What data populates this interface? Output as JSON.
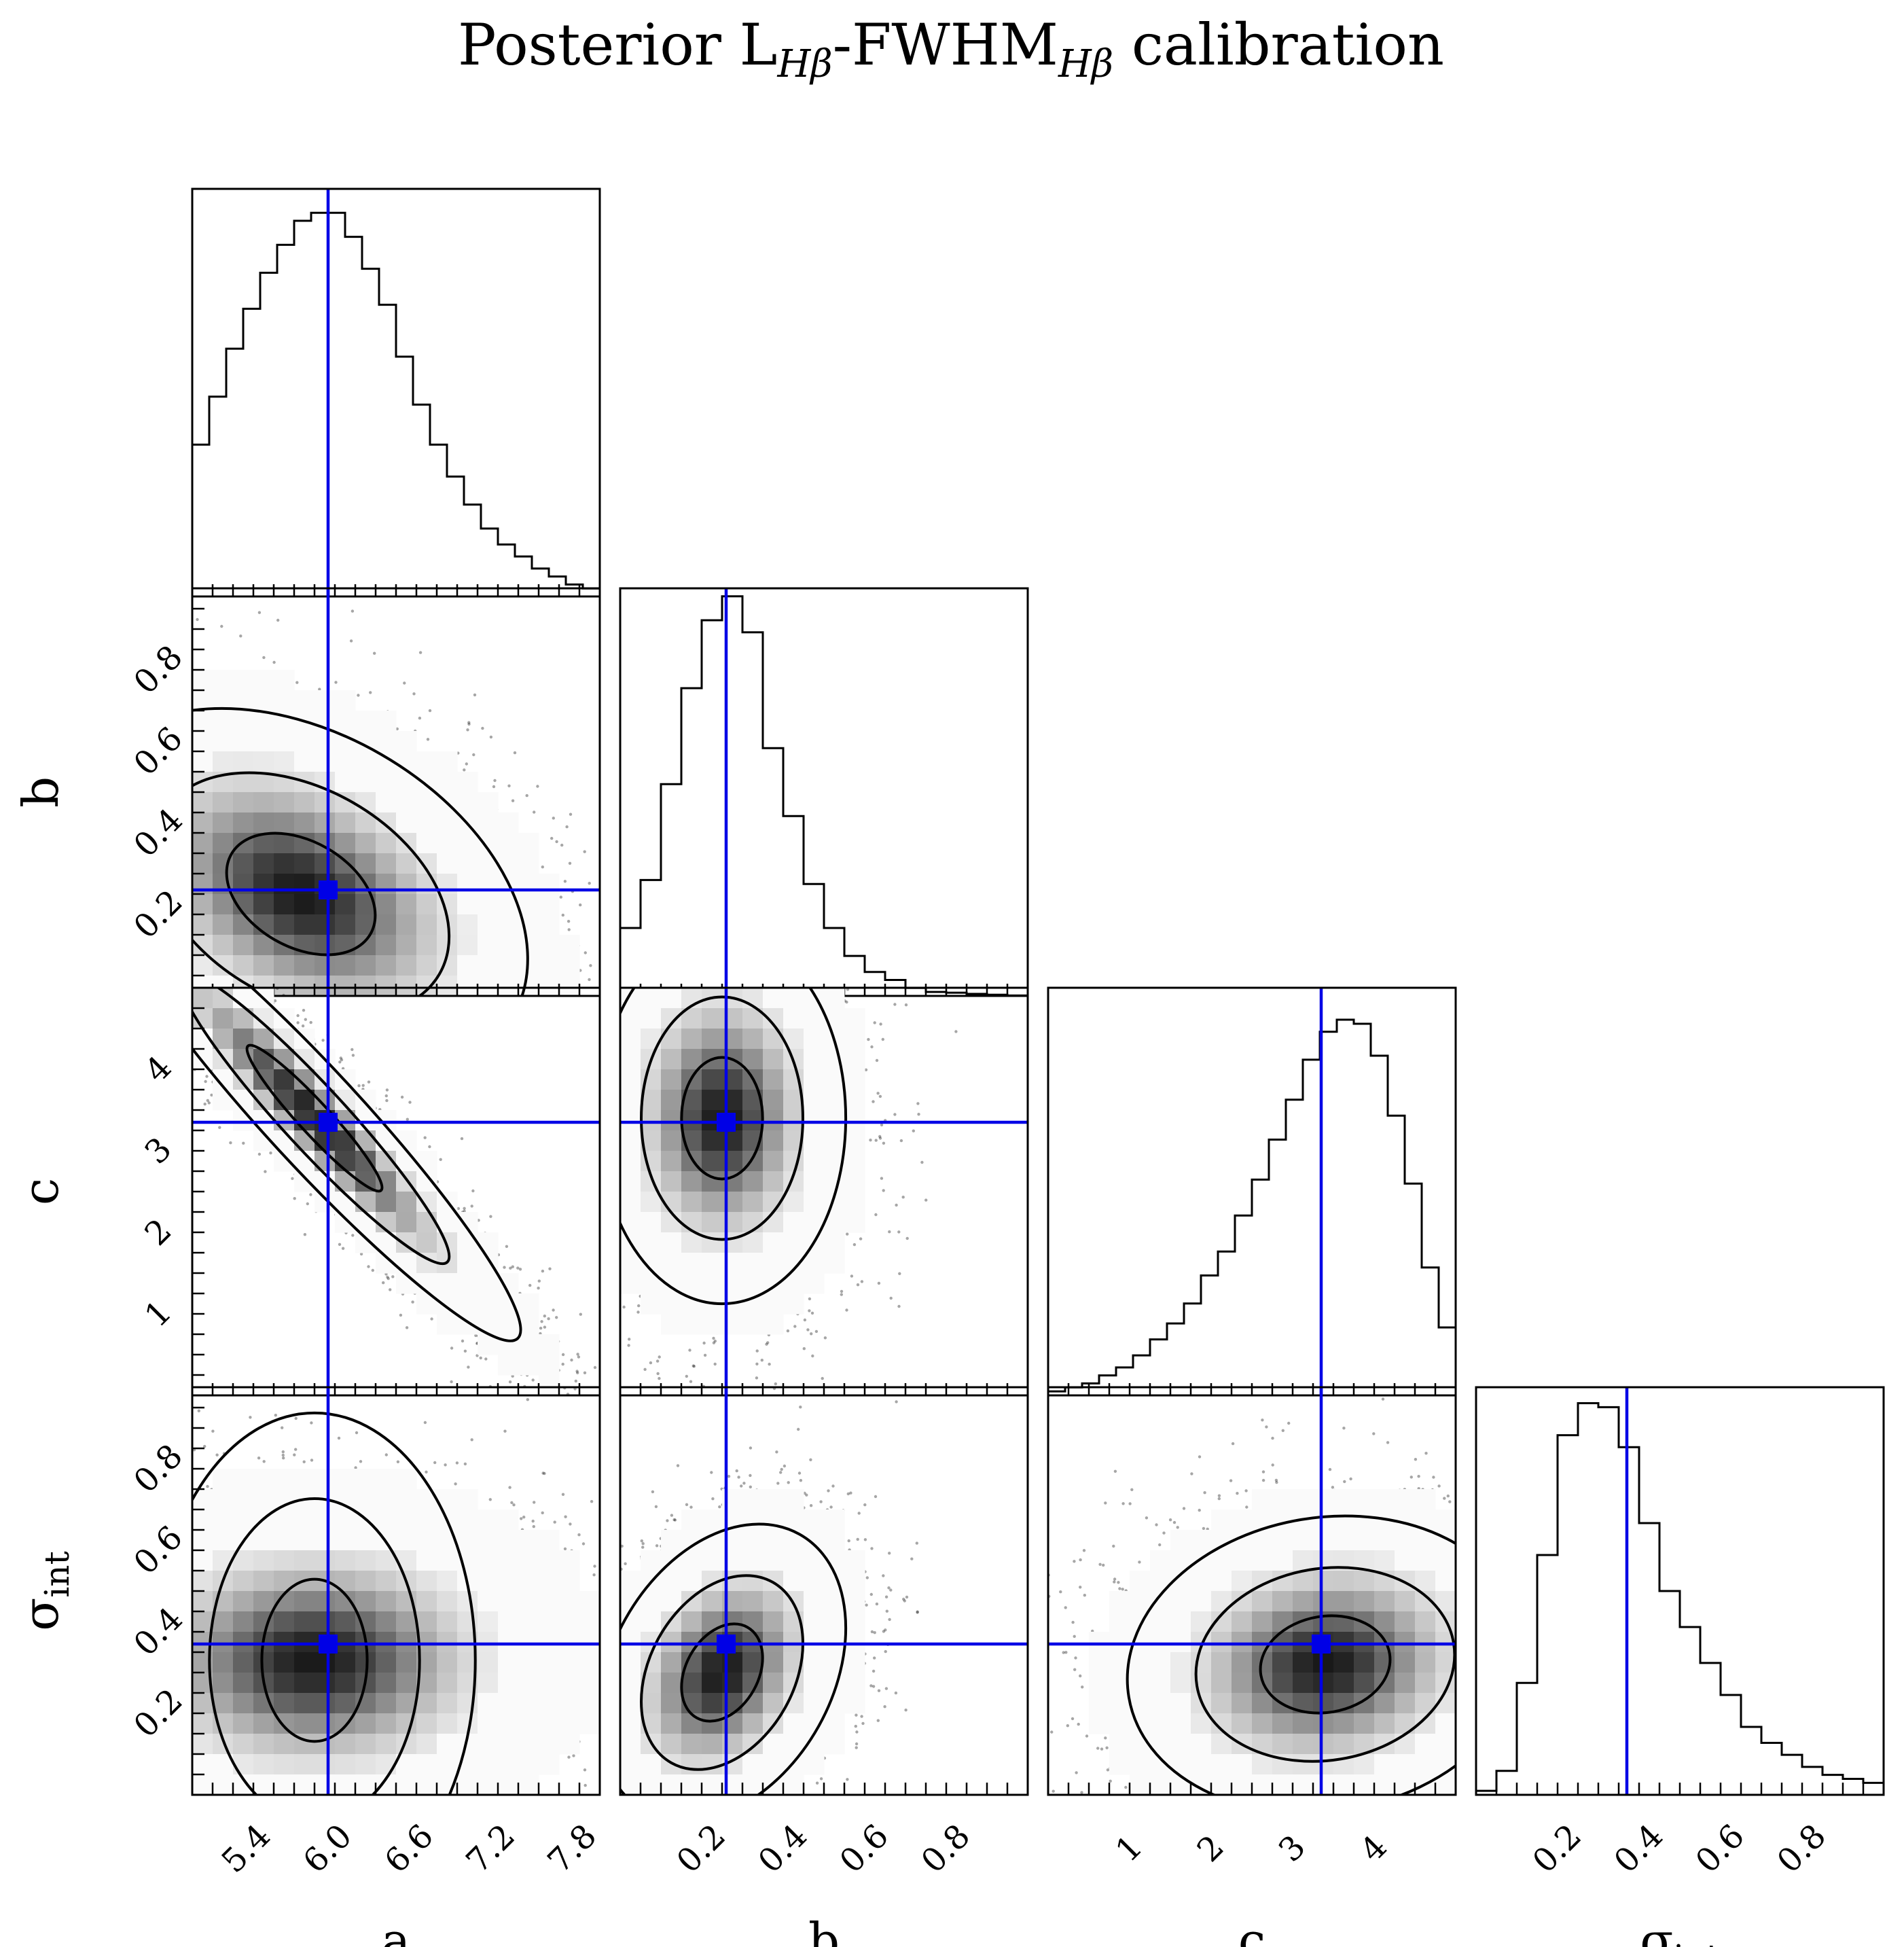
{
  "chart_data": {
    "type": "corner",
    "title": "Posterior L_Hβ-FWHM_Hβ calibration",
    "title_parts": {
      "prefix": "Posterior L",
      "sub1": "Hβ",
      "mid": "-FWHM",
      "sub2": "Hβ",
      "suffix": " calibration"
    },
    "parameters": [
      {
        "key": "a",
        "label": "a",
        "range": [
          5.0,
          8.0
        ],
        "ticks": [
          5.4,
          6.0,
          6.6,
          7.2,
          7.8
        ],
        "tick_labels": [
          "5.4",
          "6.0",
          "6.6",
          "7.2",
          "7.8"
        ],
        "truth": 6.0
      },
      {
        "key": "b",
        "label": "b",
        "range": [
          0.0,
          1.0
        ],
        "ticks": [
          0.2,
          0.4,
          0.6,
          0.8
        ],
        "tick_labels": [
          "0.2",
          "0.4",
          "0.6",
          "0.8"
        ],
        "truth": 0.26
      },
      {
        "key": "c",
        "label": "c",
        "range": [
          0.0,
          5.0
        ],
        "ticks": [
          1,
          2,
          3,
          4
        ],
        "tick_labels": [
          "1",
          "2",
          "3",
          "4"
        ],
        "truth": 3.35
      },
      {
        "key": "sigma_int",
        "label": "σ",
        "label_sub": "int",
        "range": [
          0.0,
          1.0
        ],
        "ticks": [
          0.2,
          0.4,
          0.6,
          0.8
        ],
        "tick_labels": [
          "0.2",
          "0.4",
          "0.6",
          "0.8"
        ],
        "truth": 0.37
      }
    ],
    "histograms": {
      "a": [
        0.38,
        0.5,
        0.62,
        0.72,
        0.81,
        0.88,
        0.94,
        0.96,
        0.96,
        0.9,
        0.82,
        0.73,
        0.6,
        0.48,
        0.38,
        0.3,
        0.23,
        0.17,
        0.13,
        0.1,
        0.07,
        0.05,
        0.03,
        0.02
      ],
      "b": [
        0.17,
        0.29,
        0.53,
        0.77,
        0.94,
        1.0,
        0.91,
        0.62,
        0.45,
        0.28,
        0.17,
        0.1,
        0.06,
        0.04,
        0.02,
        0.01,
        0.008,
        0.005,
        0.003,
        0.001
      ],
      "c": [
        0.01,
        0.02,
        0.03,
        0.05,
        0.07,
        0.1,
        0.14,
        0.18,
        0.23,
        0.3,
        0.36,
        0.45,
        0.54,
        0.64,
        0.74,
        0.84,
        0.91,
        0.94,
        0.93,
        0.85,
        0.7,
        0.53,
        0.32,
        0.17
      ],
      "sigma_int": [
        0.01,
        0.06,
        0.28,
        0.6,
        0.9,
        0.98,
        0.97,
        0.87,
        0.68,
        0.51,
        0.42,
        0.33,
        0.25,
        0.17,
        0.13,
        0.1,
        0.07,
        0.05,
        0.04,
        0.03
      ]
    },
    "posterior_2d": {
      "a-b": {
        "center": [
          5.8,
          0.25
        ],
        "sigma": [
          0.55,
          0.15
        ],
        "rho": -0.35
      },
      "a-c": {
        "center": [
          5.9,
          3.4
        ],
        "sigma": [
          0.5,
          0.9
        ],
        "rho": -0.95
      },
      "b-c": {
        "center": [
          0.25,
          3.4
        ],
        "sigma": [
          0.1,
          0.75
        ],
        "rho": 0.0
      },
      "a-sigma_int": {
        "center": [
          5.9,
          0.33
        ],
        "sigma": [
          0.6,
          0.13
        ],
        "rho": 0.0
      },
      "b-sigma_int": {
        "center": [
          0.25,
          0.3
        ],
        "sigma": [
          0.1,
          0.12
        ],
        "rho": 0.3
      },
      "c-sigma_int": {
        "center": [
          3.4,
          0.32
        ],
        "sigma": [
          0.8,
          0.12
        ],
        "rho": 0.1
      }
    },
    "contour_levels": [
      0.39,
      0.86,
      0.99
    ],
    "colors": {
      "truth": "#0000e6",
      "hist": "#000000",
      "contour": "#000000"
    },
    "grid": false,
    "legend": "none"
  }
}
